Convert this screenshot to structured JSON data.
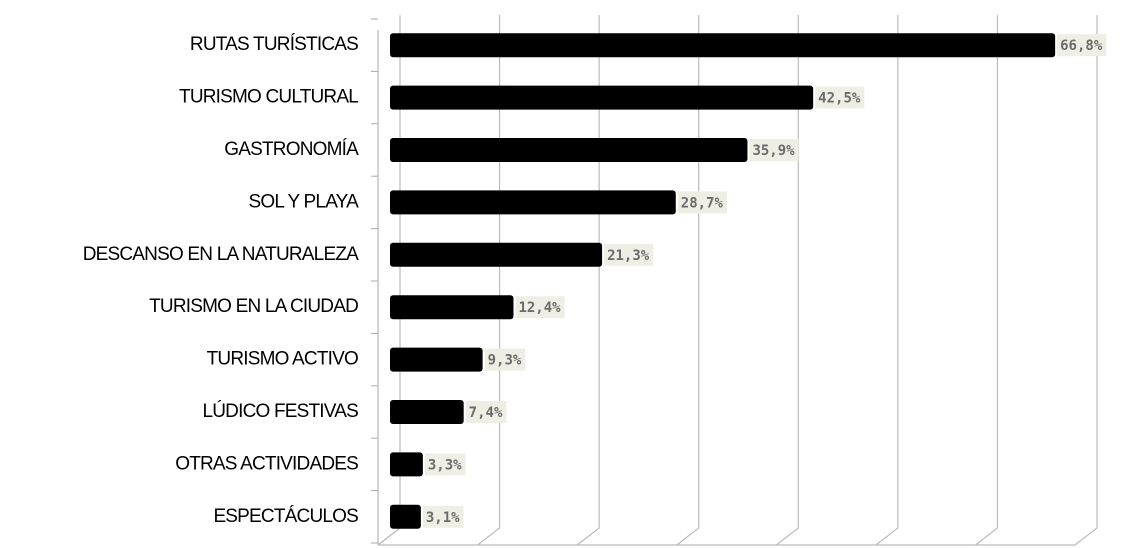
{
  "chart_data": {
    "type": "bar",
    "orientation": "horizontal",
    "categories": [
      "RUTAS TURÍSTICAS",
      "TURISMO CULTURAL",
      "GASTRONOMÍA",
      "SOL Y PLAYA",
      "DESCANSO EN LA NATURALEZA",
      "TURISMO EN LA CIUDAD",
      "TURISMO ACTIVO",
      "LÚDICO FESTIVAS",
      "OTRAS ACTIVIDADES",
      "ESPECTÁCULOS"
    ],
    "values": [
      66.8,
      42.5,
      35.9,
      28.7,
      21.3,
      12.4,
      9.3,
      7.4,
      3.3,
      3.1
    ],
    "value_labels": [
      "66,8%",
      "42,5%",
      "35,9%",
      "28,7%",
      "21,3%",
      "12,4%",
      "9,3%",
      "7,4%",
      "3,3%",
      "3,1%"
    ],
    "color": "#000000",
    "xlim": [
      0,
      70
    ],
    "xticks": [
      0,
      10,
      20,
      30,
      40,
      50,
      60,
      70
    ],
    "grid": true
  }
}
